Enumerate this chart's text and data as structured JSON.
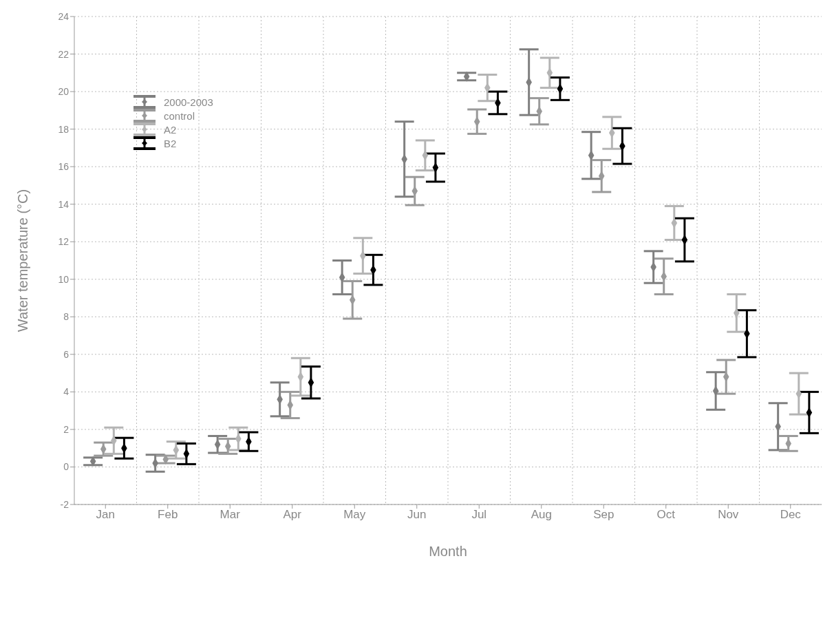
{
  "chart_data": {
    "type": "scatter",
    "xlabel": "Month",
    "ylabel": "Water temperature (°C)",
    "categories": [
      "Jan",
      "Feb",
      "Mar",
      "Apr",
      "May",
      "Jun",
      "Jul",
      "Aug",
      "Sep",
      "Oct",
      "Nov",
      "Dec"
    ],
    "series": [
      {
        "name": "2000-2003",
        "color": "#7f7f7f",
        "values": [
          0.3,
          0.2,
          1.2,
          3.6,
          10.1,
          16.4,
          20.8,
          20.5,
          16.6,
          10.65,
          4.05,
          2.15
        ],
        "errors": [
          0.2,
          0.45,
          0.45,
          0.9,
          0.9,
          2.0,
          0.2,
          1.75,
          1.25,
          0.85,
          1.0,
          1.25
        ]
      },
      {
        "name": "control",
        "color": "#9a9a9a",
        "values": [
          0.95,
          0.4,
          1.1,
          3.3,
          8.9,
          14.7,
          18.4,
          18.95,
          15.5,
          10.15,
          4.8,
          1.25
        ],
        "errors": [
          0.35,
          0.2,
          0.4,
          0.7,
          1.0,
          0.75,
          0.65,
          0.7,
          0.85,
          0.95,
          0.9,
          0.4
        ]
      },
      {
        "name": "A2",
        "color": "#b4b4b4",
        "values": [
          1.4,
          0.9,
          1.5,
          4.8,
          11.25,
          16.6,
          20.2,
          21.0,
          17.8,
          13.0,
          8.2,
          3.9
        ],
        "errors": [
          0.7,
          0.45,
          0.6,
          1.0,
          0.95,
          0.8,
          0.7,
          0.8,
          0.85,
          0.9,
          1.0,
          1.1
        ]
      },
      {
        "name": "B2",
        "color": "#000000",
        "values": [
          1.0,
          0.7,
          1.35,
          4.5,
          10.5,
          15.95,
          19.4,
          20.15,
          17.1,
          12.1,
          7.1,
          2.9
        ],
        "errors": [
          0.55,
          0.55,
          0.5,
          0.85,
          0.8,
          0.75,
          0.6,
          0.6,
          0.95,
          1.15,
          1.25,
          1.1
        ]
      }
    ],
    "ylim": [
      -2,
      24
    ],
    "yticks": [
      -2,
      0,
      2,
      4,
      6,
      8,
      10,
      12,
      14,
      16,
      18,
      20,
      22,
      24
    ],
    "grid": true,
    "legend": "top left",
    "marker": "diamond"
  }
}
